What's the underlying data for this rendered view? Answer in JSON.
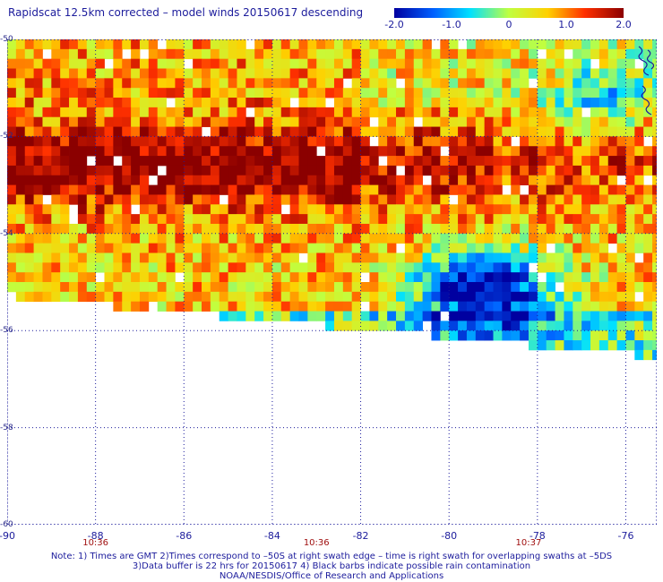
{
  "title": "Rapidscat 12.5km corrected – model winds 20150617 descending",
  "colorbar": {
    "ticks": [
      "-2.0",
      "-1.0",
      "0",
      "1.0",
      "2.0"
    ],
    "tick_values": [
      -2.0,
      -1.0,
      0.0,
      1.0,
      2.0
    ],
    "range": [
      -2.0,
      2.0
    ],
    "colors": [
      "#0000a0",
      "#0060ff",
      "#00e0ff",
      "#c0ff40",
      "#ffd000",
      "#ff3000",
      "#8b0000"
    ]
  },
  "map": {
    "lat_range": [
      -60,
      -50
    ],
    "lon_range": [
      -90,
      -75.3
    ],
    "lat_ticks": [
      "-50",
      "-52",
      "-54",
      "-56",
      "-58",
      "-60"
    ],
    "lon_ticks": [
      "-90",
      "-88",
      "-86",
      "-84",
      "-82",
      "-80",
      "-78",
      "-76"
    ],
    "times": [
      {
        "label": "10:36",
        "lon": -88.0
      },
      {
        "label": "10:36",
        "lon": -83.0
      },
      {
        "label": "10:37",
        "lon": -78.2
      }
    ],
    "gridlines": true,
    "colors": {
      "axis": "#1c1c9c",
      "grid": "#1c1c9c",
      "coast": "#1c1c9c",
      "time": "#a01010"
    }
  },
  "notes": [
    "Note: 1) Times are GMT 2)Times correspond to –50S at right swath edge – time is right swath for overlapping swaths at –5DS",
    "3)Data buffer is 22 hrs for 20150617 4) Black barbs indicate possible rain contamination",
    "NOAA/NESDIS/Office of Research and Applications"
  ]
}
